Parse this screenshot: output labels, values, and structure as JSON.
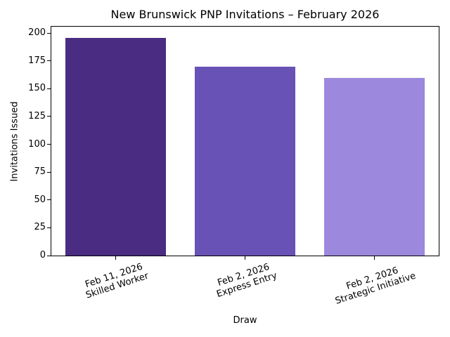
{
  "chart_data": {
    "type": "bar",
    "title": "New Brunswick PNP Invitations – February 2026",
    "xlabel": "Draw",
    "ylabel": "Invitations Issued",
    "categories": [
      "Feb 11, 2026\nSkilled Worker",
      "Feb 2, 2026\nExpress Entry",
      "Feb 2, 2026\nStrategic Initiative"
    ],
    "values": [
      196,
      170,
      160
    ],
    "bar_colors": [
      "#4a2d82",
      "#6952b5",
      "#9c88dc"
    ],
    "ylim": [
      0,
      205.8
    ],
    "yticks": [
      0,
      25,
      50,
      75,
      100,
      125,
      150,
      175,
      200
    ],
    "grid": false,
    "legend": null,
    "xtick_rotation_deg": 18,
    "background": "#ffffff",
    "spine_color": "#000000"
  }
}
